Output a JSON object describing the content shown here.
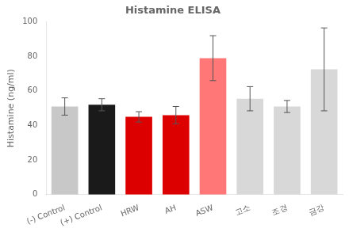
{
  "chart_data": {
    "type": "bar",
    "title": "Histamine ELISA",
    "ylabel": "Histamine (ng/ml)",
    "categories": [
      "(-) Control",
      "(+) Control",
      "HRW",
      "AH",
      "ASW",
      "고소",
      "조경",
      "금강"
    ],
    "values": [
      51,
      52,
      45,
      46,
      79,
      55.5,
      51,
      72.5
    ],
    "errors": [
      5,
      3.5,
      3,
      5,
      13,
      7,
      3.5,
      24
    ],
    "colors": [
      "#c8c8c8",
      "#1a1a1a",
      "#dd0000",
      "#dd0000",
      "#ff7777",
      "#d8d8d8",
      "#d8d8d8",
      "#d8d8d8"
    ],
    "ylim": [
      0,
      100
    ],
    "yticks": [
      0,
      20,
      40,
      60,
      80,
      100
    ],
    "grid": false
  }
}
